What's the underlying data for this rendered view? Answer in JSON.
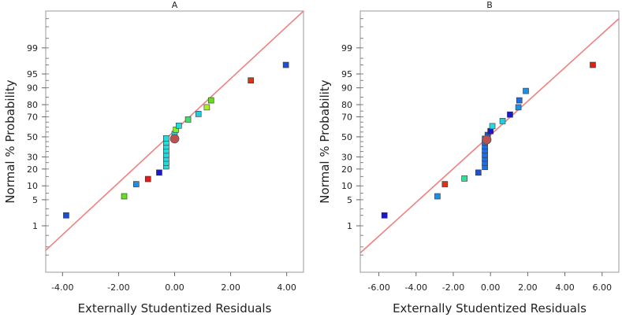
{
  "chart_data": [
    {
      "type": "scatter",
      "title": "A",
      "xlabel": "Externally Studentized Residuals",
      "ylabel": "Normal % Probability",
      "xlim": [
        -4.6,
        4.6
      ],
      "xticks": [
        -4,
        -2,
        0,
        2,
        4
      ],
      "xtick_labels": [
        "-4.00",
        "-2.00",
        "0.00",
        "2.00",
        "4.00"
      ],
      "y_label_ticks": [
        1,
        5,
        10,
        20,
        30,
        50,
        70,
        80,
        90,
        95,
        99
      ],
      "y_tick_labels": [
        "1",
        "5",
        "10",
        "20",
        "30",
        "50",
        "70",
        "80",
        "90",
        "95",
        "99"
      ],
      "reference_line": {
        "color": "#f08080",
        "from": [
          -4.6,
          0.15
        ],
        "to": [
          4.6,
          99.95
        ]
      },
      "highlight_point": {
        "x": 0.0,
        "p": 48.0,
        "color": "#c0504d"
      },
      "points": [
        {
          "x": -3.87,
          "p": 2.0,
          "color": "#1a52d0"
        },
        {
          "x": -1.8,
          "p": 6.0,
          "color": "#66dd22"
        },
        {
          "x": -1.37,
          "p": 10.8,
          "color": "#1e8ee6"
        },
        {
          "x": -0.95,
          "p": 13.5,
          "color": "#dd1c1c"
        },
        {
          "x": -0.55,
          "p": 17.5,
          "color": "#1a1acc"
        },
        {
          "x": -0.3,
          "p": 22.0,
          "color": "#22dddd"
        },
        {
          "x": -0.3,
          "p": 25.0,
          "color": "#22dddd"
        },
        {
          "x": -0.3,
          "p": 28.5,
          "color": "#22dddd"
        },
        {
          "x": -0.3,
          "p": 32.0,
          "color": "#22dddd"
        },
        {
          "x": -0.3,
          "p": 36.0,
          "color": "#22dddd"
        },
        {
          "x": -0.3,
          "p": 40.0,
          "color": "#22dddd"
        },
        {
          "x": -0.3,
          "p": 44.0,
          "color": "#22dddd"
        },
        {
          "x": -0.3,
          "p": 48.5,
          "color": "#22dddd"
        },
        {
          "x": 0.0,
          "p": 53.0,
          "color": "#22dddd"
        },
        {
          "x": 0.05,
          "p": 57.5,
          "color": "#88ee22"
        },
        {
          "x": 0.15,
          "p": 61.5,
          "color": "#22dddd"
        },
        {
          "x": 0.48,
          "p": 67.5,
          "color": "#44dd66"
        },
        {
          "x": 0.85,
          "p": 72.5,
          "color": "#22ccdd"
        },
        {
          "x": 1.15,
          "p": 78.0,
          "color": "#aaee22"
        },
        {
          "x": 1.3,
          "p": 83.0,
          "color": "#66dd22"
        },
        {
          "x": 2.72,
          "p": 93.0,
          "color": "#dd3311"
        },
        {
          "x": 3.97,
          "p": 97.0,
          "color": "#1a52d0"
        }
      ]
    },
    {
      "type": "scatter",
      "title": "B",
      "xlabel": "Externally Studentized Residuals",
      "ylabel": "Normal % Probability",
      "xlim": [
        -7.0,
        6.9
      ],
      "xticks": [
        -6,
        -4,
        -2,
        0,
        2,
        4,
        6
      ],
      "xtick_labels": [
        "-6.00",
        "-4.00",
        "-2.00",
        "0.00",
        "2.00",
        "4.00",
        "6.00"
      ],
      "y_label_ticks": [
        1,
        5,
        10,
        20,
        30,
        50,
        70,
        80,
        90,
        95,
        99
      ],
      "y_tick_labels": [
        "1",
        "5",
        "10",
        "20",
        "30",
        "50",
        "70",
        "80",
        "90",
        "95",
        "99"
      ],
      "reference_line": {
        "color": "#f08080",
        "from": [
          -7.0,
          0.12
        ],
        "to": [
          6.9,
          99.9
        ]
      },
      "highlight_point": {
        "x": -0.2,
        "p": 47.0,
        "color": "#c0504d"
      },
      "points": [
        {
          "x": -5.7,
          "p": 2.0,
          "color": "#1a1acc"
        },
        {
          "x": -2.85,
          "p": 6.0,
          "color": "#1e8ee6"
        },
        {
          "x": -2.45,
          "p": 10.8,
          "color": "#dd3311"
        },
        {
          "x": -1.4,
          "p": 13.8,
          "color": "#33dd99"
        },
        {
          "x": -0.65,
          "p": 17.5,
          "color": "#1a52d0"
        },
        {
          "x": -0.3,
          "p": 21.5,
          "color": "#1e6ee6"
        },
        {
          "x": -0.3,
          "p": 25.0,
          "color": "#1e6ee6"
        },
        {
          "x": -0.3,
          "p": 28.5,
          "color": "#1e6ee6"
        },
        {
          "x": -0.3,
          "p": 32.0,
          "color": "#1e6ee6"
        },
        {
          "x": -0.3,
          "p": 36.0,
          "color": "#1e6ee6"
        },
        {
          "x": -0.3,
          "p": 40.0,
          "color": "#1e6ee6"
        },
        {
          "x": -0.3,
          "p": 44.0,
          "color": "#1e6ee6"
        },
        {
          "x": -0.3,
          "p": 48.0,
          "color": "#1e6ee6"
        },
        {
          "x": -0.15,
          "p": 52.0,
          "color": "#1a52d0"
        },
        {
          "x": 0.0,
          "p": 56.0,
          "color": "#1a1acc"
        },
        {
          "x": 0.1,
          "p": 61.0,
          "color": "#22dddd"
        },
        {
          "x": 0.65,
          "p": 66.0,
          "color": "#22ccdd"
        },
        {
          "x": 1.05,
          "p": 72.0,
          "color": "#1a1acc"
        },
        {
          "x": 1.5,
          "p": 78.0,
          "color": "#1e8ee6"
        },
        {
          "x": 1.55,
          "p": 83.0,
          "color": "#1e6ee6"
        },
        {
          "x": 1.9,
          "p": 88.5,
          "color": "#1e8ee6"
        },
        {
          "x": 5.5,
          "p": 97.0,
          "color": "#dd2211"
        }
      ]
    }
  ]
}
